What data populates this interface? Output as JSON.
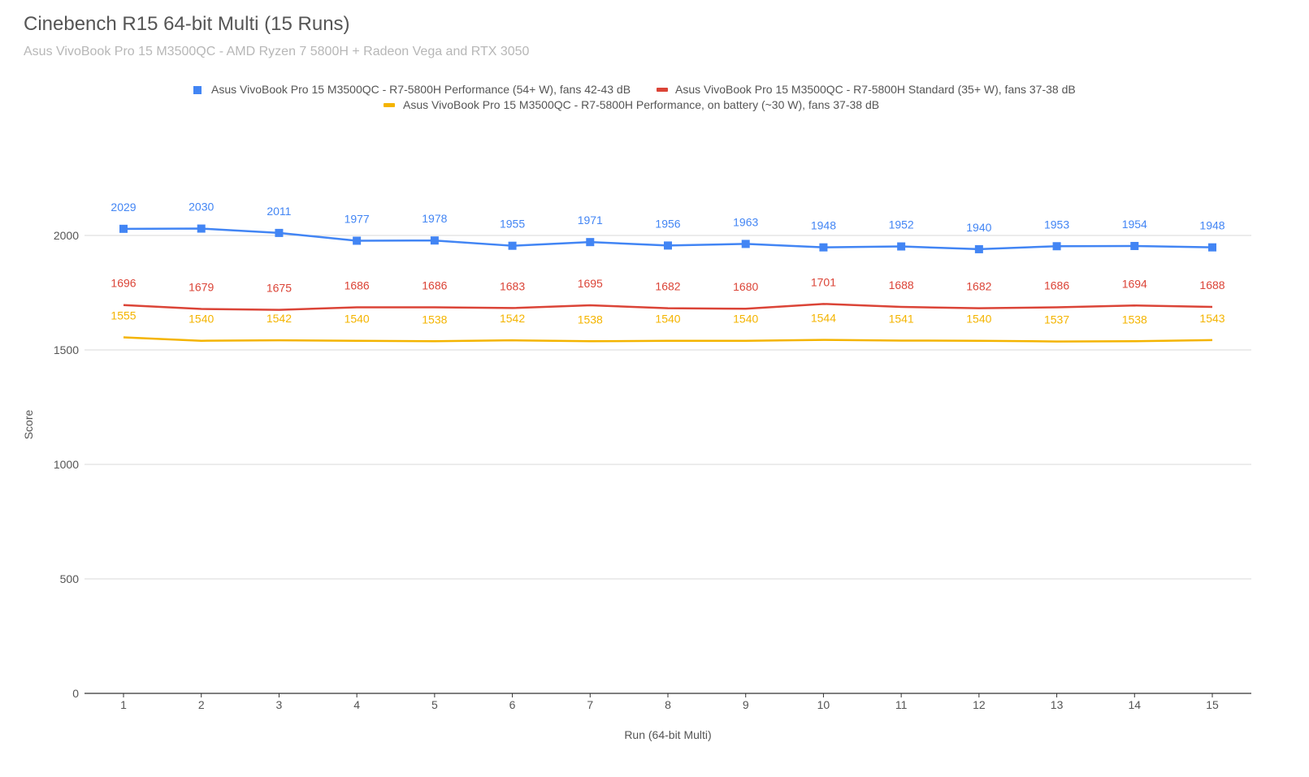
{
  "chart_data": {
    "type": "line",
    "title": "Cinebench R15 64-bit Multi (15 Runs)",
    "subtitle": "Asus VivoBook Pro 15 M3500QC - AMD Ryzen 7 5800H + Radeon Vega and RTX 3050",
    "xlabel": "Run (64-bit Multi)",
    "ylabel": "Score",
    "ylim": [
      0,
      2000
    ],
    "yticks": [
      "0",
      "500",
      "1000",
      "1500",
      "2000"
    ],
    "categories": [
      "1",
      "2",
      "3",
      "4",
      "5",
      "6",
      "7",
      "8",
      "9",
      "10",
      "11",
      "12",
      "13",
      "14",
      "15"
    ],
    "legend_position": "top",
    "series": [
      {
        "name": "Asus VivoBook Pro 15 M3500QC - R7-5800H Performance (54+ W), fans 42-43 dB",
        "color": "#4285f4",
        "marker": "square",
        "values": [
          2029,
          2030,
          2011,
          1977,
          1978,
          1955,
          1971,
          1956,
          1963,
          1948,
          1952,
          1940,
          1953,
          1954,
          1948
        ]
      },
      {
        "name": "Asus VivoBook Pro 15 M3500QC - R7-5800H Standard (35+ W), fans 37-38 dB",
        "color": "#db4437",
        "marker": "none",
        "values": [
          1696,
          1679,
          1675,
          1686,
          1686,
          1683,
          1695,
          1682,
          1680,
          1701,
          1688,
          1682,
          1686,
          1694,
          1688
        ]
      },
      {
        "name": "Asus VivoBook Pro 15 M3500QC - R7-5800H Performance, on battery (~30 W), fans 37-38 dB",
        "color": "#f4b400",
        "marker": "none",
        "values": [
          1555,
          1540,
          1542,
          1540,
          1538,
          1542,
          1538,
          1540,
          1540,
          1544,
          1541,
          1540,
          1537,
          1538,
          1543
        ]
      }
    ]
  }
}
